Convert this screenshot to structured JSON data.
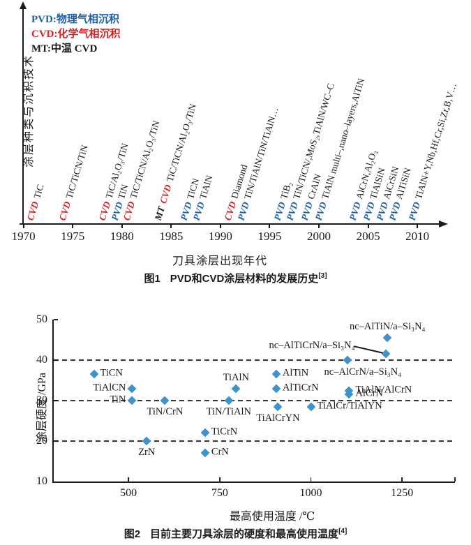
{
  "colors": {
    "pvd": "#1e5fa9",
    "cvd": "#d42328",
    "mt": "#1a1a1a",
    "marker": "#3d93cb",
    "axis": "#1a1a1a",
    "text": "#1a1a1a"
  },
  "fig1": {
    "caption": {
      "label": "图1",
      "text": "PVD和CVD涂层材料的发展历史",
      "ref": "[3]"
    }
  },
  "fig2": {
    "caption": {
      "label": "图2",
      "text": "目前主要刀具涂层的硬度和最高使用温度",
      "ref": "[4]"
    }
  },
  "chart_data": [
    {
      "type": "scatter",
      "subtype": "timeline",
      "title": "图1 PVD和CVD涂层材料的发展历史[3]",
      "xlabel": "刀具涂层出现年代",
      "ylabel": "涂层种类与沉积技术",
      "xlim": [
        1969.6,
        2012.4
      ],
      "xticks": [
        1970,
        1975,
        1980,
        1985,
        1990,
        1995,
        2000,
        2005,
        2010
      ],
      "legend": [
        {
          "text": "PVD:物理气相沉积",
          "color": "#1e5fa9"
        },
        {
          "text": "CVD:化学气相沉积",
          "color": "#d42328"
        },
        {
          "text": "MT:中温 CVD",
          "color": "#1a1a1a"
        }
      ],
      "points": [
        {
          "year": 1971.2,
          "method": "CVD",
          "material": "TiC"
        },
        {
          "year": 1974.5,
          "method": "CVD",
          "material": "TiC/TiCN/TiN"
        },
        {
          "year": 1978.5,
          "method": "CVD",
          "material": "TiC/Al₂O₃/TiN"
        },
        {
          "year": 1979.8,
          "method": "PVD",
          "material": "TiN"
        },
        {
          "year": 1981.0,
          "method": "CVD",
          "material": "TiC/TiCN/Al₂O₃/TiN"
        },
        {
          "year": 1984.2,
          "method": "MT CVD",
          "material": "TiC/TiCN/Al₂O₃/TiN"
        },
        {
          "year": 1986.8,
          "method": "PVD",
          "material": "TiCN"
        },
        {
          "year": 1988.1,
          "method": "PVD",
          "material": "TiAlN"
        },
        {
          "year": 1991.3,
          "method": "CVD",
          "material": "Diamond"
        },
        {
          "year": 1992.6,
          "method": "PVD",
          "material": "TiN/TiAlN/TiN/TiAlN…"
        },
        {
          "year": 1996.3,
          "method": "PVD",
          "material": "TiB₂"
        },
        {
          "year": 1997.6,
          "method": "PVD",
          "material": "TiN/TiCN/,MoS₂,TiAlN/WC–C"
        },
        {
          "year": 1999.1,
          "method": "PVD",
          "material": "CrAlN"
        },
        {
          "year": 2000.5,
          "method": "PVD",
          "material": "TiAlN multi–,nano–layers,AlTiN"
        },
        {
          "year": 2004.0,
          "method": "PVD",
          "material": "AlCrN,Al₂O₃"
        },
        {
          "year": 2005.4,
          "method": "PVD",
          "material": "TiAlSiN"
        },
        {
          "year": 2006.7,
          "method": "PVD",
          "material": "AlCrSiN"
        },
        {
          "year": 2008.0,
          "method": "PVD",
          "material": "AlTiSiN"
        },
        {
          "year": 2010.0,
          "method": "PVD",
          "material": "TiAlN+Y,Nb,Hf,Cr,Si,Zr,B,V…"
        }
      ]
    },
    {
      "type": "scatter",
      "title": "图2 目前主要刀具涂层的硬度和最高使用温度[4]",
      "xlabel": "最高使用温度 /℃",
      "ylabel": "涂层硬度 /GPa",
      "xlim": [
        295,
        1395
      ],
      "ylim": [
        10,
        50
      ],
      "xticks": [
        500,
        750,
        1000,
        1250
      ],
      "yticks": [
        50,
        40,
        30,
        20,
        10
      ],
      "gridlines_y": [
        20,
        30,
        40
      ],
      "marker": "diamond",
      "points": [
        {
          "label": "TiCN",
          "x": 405,
          "y": 36.5,
          "label_pos": "right"
        },
        {
          "label": "TiAlCN",
          "x": 510,
          "y": 33,
          "label_pos": "left"
        },
        {
          "label": "TiN",
          "x": 510,
          "y": 30,
          "label_pos": "left"
        },
        {
          "label": "TiN/CrN",
          "x": 600,
          "y": 30,
          "label_pos": "below"
        },
        {
          "label": "ZrN",
          "x": 550,
          "y": 20,
          "label_pos": "below"
        },
        {
          "label": "TiCrN",
          "x": 710,
          "y": 22,
          "label_pos": "right"
        },
        {
          "label": "CrN",
          "x": 710,
          "y": 17,
          "label_pos": "right"
        },
        {
          "label": "TiAlN",
          "x": 795,
          "y": 33,
          "label_pos": "above"
        },
        {
          "label": "TiN/TiAlN",
          "x": 775,
          "y": 30,
          "label_pos": "below"
        },
        {
          "label": "AlTiN",
          "x": 905,
          "y": 36.5,
          "label_pos": "right"
        },
        {
          "label": "AlTiCrN",
          "x": 905,
          "y": 33,
          "label_pos": "right"
        },
        {
          "label": "TiAlCrYN",
          "x": 910,
          "y": 28.5,
          "label_pos": "below"
        },
        {
          "label": "TiAlCr/TiAlYN",
          "x": 1000,
          "y": 28.5,
          "label_pos": "right"
        },
        {
          "label": "nc–AlCrN/a–Si₃N₄",
          "x": 1100,
          "y": 40,
          "label_pos": "below-right"
        },
        {
          "label": "TiAlN/AlCrN",
          "x": 1105,
          "y": 32.5,
          "label_pos": "right"
        },
        {
          "label": "AlCrN",
          "x": 1105,
          "y": 31.5,
          "label_pos": "right"
        },
        {
          "label": "nc–AlTiCrN/a–Si₃N₄",
          "x": 1205,
          "y": 41.5,
          "label_pos": "leader-left"
        },
        {
          "label": "nc–AlTiN/a–Si₃N₄",
          "x": 1210,
          "y": 45.5,
          "label_pos": "above"
        }
      ]
    }
  ]
}
